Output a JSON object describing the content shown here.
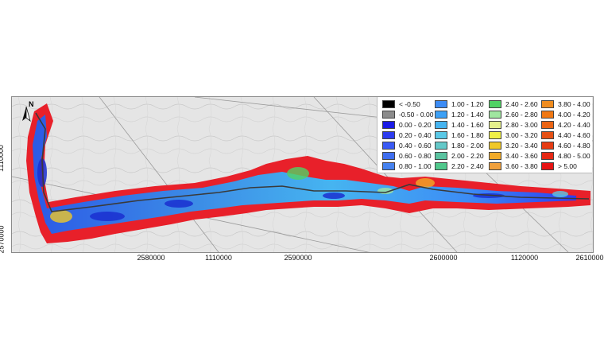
{
  "axes": {
    "x_ticks": [
      "2580000",
      "1110000",
      "2590000",
      "2600000",
      "1120000",
      "2610000"
    ],
    "y_ticks": [
      "1110000",
      "2570000"
    ]
  },
  "north_arrow": {
    "label": "N",
    "icon": "north-arrow-icon"
  },
  "legend": {
    "items": [
      {
        "label": "< -0.50",
        "color": "#000000"
      },
      {
        "label": "-0.50 - 0.00",
        "color": "#8c8c8c"
      },
      {
        "label": "0.00 - 0.20",
        "color": "#1a1ae6"
      },
      {
        "label": "0.20 - 0.40",
        "color": "#2d3cf0"
      },
      {
        "label": "0.40 - 0.60",
        "color": "#3a5af5"
      },
      {
        "label": "0.60 - 0.80",
        "color": "#3f6ef0"
      },
      {
        "label": "0.80 - 1.00",
        "color": "#4682f0"
      },
      {
        "label": "1.00 - 1.20",
        "color": "#3c8cf5"
      },
      {
        "label": "1.20 - 1.40",
        "color": "#3ca0f5"
      },
      {
        "label": "1.40 - 1.60",
        "color": "#46b4f0"
      },
      {
        "label": "1.60 - 1.80",
        "color": "#5ac8e6"
      },
      {
        "label": "1.80 - 2.00",
        "color": "#64c8c8"
      },
      {
        "label": "2.00 - 2.20",
        "color": "#5ac3a0"
      },
      {
        "label": "2.20 - 2.40",
        "color": "#50c88c"
      },
      {
        "label": "2.40 - 2.60",
        "color": "#50d264"
      },
      {
        "label": "2.60 - 2.80",
        "color": "#a0e6a0"
      },
      {
        "label": "2.80 - 3.00",
        "color": "#e6f08c"
      },
      {
        "label": "3.00 - 3.20",
        "color": "#f0f046"
      },
      {
        "label": "3.20 - 3.40",
        "color": "#f0c828"
      },
      {
        "label": "3.40 - 3.60",
        "color": "#f0aa28"
      },
      {
        "label": "3.60 - 3.80",
        "color": "#f0a03c"
      },
      {
        "label": "3.80 - 4.00",
        "color": "#f08c1e"
      },
      {
        "label": "4.00 - 4.20",
        "color": "#f07814"
      },
      {
        "label": "4.20 - 4.40",
        "color": "#eb6414"
      },
      {
        "label": "4.40 - 4.60",
        "color": "#e65014"
      },
      {
        "label": "4.60 - 4.80",
        "color": "#e63c14"
      },
      {
        "label": "4.80 - 5.00",
        "color": "#e62814"
      },
      {
        "label": "> 5.00",
        "color": "#e61414"
      }
    ]
  },
  "colors": {
    "flood_outer": "#e8202a",
    "flood_mid": "#3c8ce6",
    "flood_deep": "#1a2fd0",
    "river": "#3a3a3a",
    "basemap": "#d6d6d6"
  }
}
